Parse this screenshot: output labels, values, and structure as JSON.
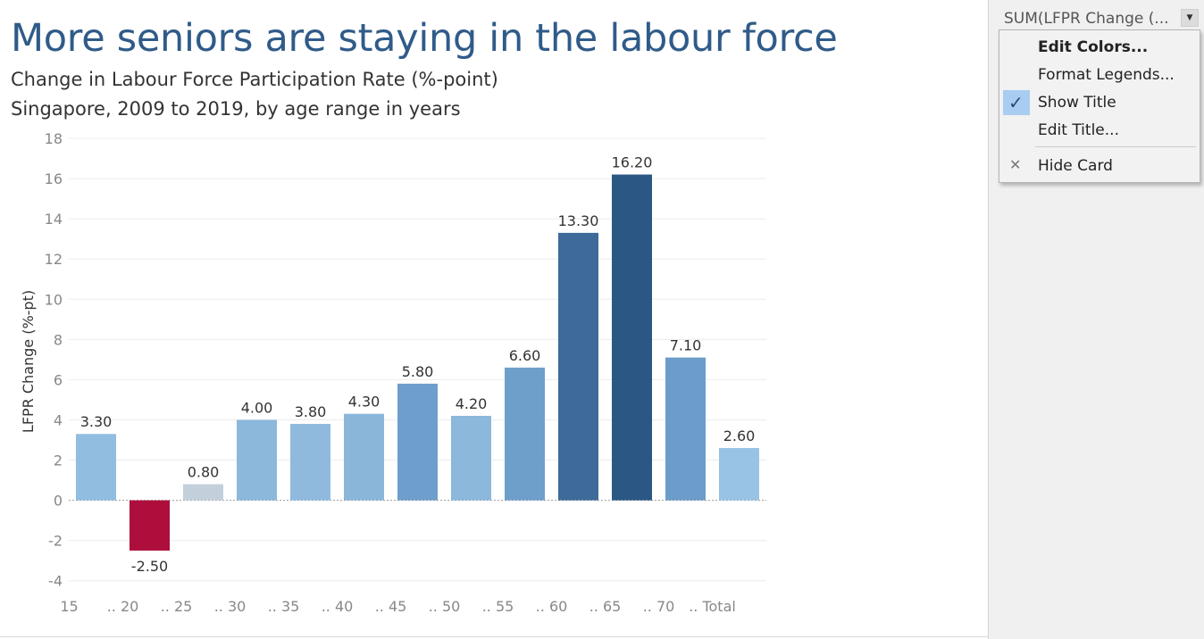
{
  "title": "More seniors are staying in the labour force",
  "subtitle_1": "Change in Labour Force Participation Rate (%-point)",
  "subtitle_2": "Singapore, 2009 to 2019, by age range in years",
  "legend_card": {
    "title": "SUM(LFPR Change (...",
    "dropdown_icon": "caret-down-icon"
  },
  "context_menu": {
    "items": [
      {
        "label": "Edit Colors...",
        "bold": true
      },
      {
        "label": "Format Legends...",
        "bold": false
      },
      {
        "label": "Show Title",
        "bold": false,
        "checked": true
      },
      {
        "label": "Edit Title...",
        "bold": false
      },
      {
        "label": "Hide Card",
        "bold": false,
        "icon": "close-icon"
      }
    ]
  },
  "chart_data": {
    "type": "bar",
    "categories": [
      "15",
      ".. 20",
      ".. 25",
      ".. 30",
      ".. 35",
      ".. 40",
      ".. 45",
      ".. 50",
      ".. 55",
      ".. 60",
      ".. 65",
      ".. 70",
      ".. Total"
    ],
    "values": [
      3.3,
      -2.5,
      0.8,
      4.0,
      3.8,
      4.3,
      5.8,
      4.2,
      6.6,
      13.3,
      16.2,
      7.1,
      2.6
    ],
    "value_labels": [
      "3.30",
      "-2.50",
      "0.80",
      "4.00",
      "3.80",
      "4.30",
      "5.80",
      "4.20",
      "6.60",
      "13.30",
      "16.20",
      "7.10",
      "2.60"
    ],
    "bar_colors": [
      "#91bde0",
      "#ae0e3c",
      "#c3d0dc",
      "#8bb8db",
      "#8fbade",
      "#8ab6da",
      "#6e9ecb",
      "#8bb8db",
      "#6e9fcb",
      "#3e6a9a",
      "#2b5784",
      "#6c9cc9",
      "#98c3e5"
    ],
    "ylabel": "LFPR Change (%-pt)",
    "xlabel": "",
    "ylim": [
      -4.5,
      18
    ],
    "yticks": [
      "18",
      "16",
      "14",
      "12",
      "10",
      "8",
      "6",
      "4",
      "2",
      "0",
      "-2",
      "-4"
    ],
    "grid": true
  }
}
